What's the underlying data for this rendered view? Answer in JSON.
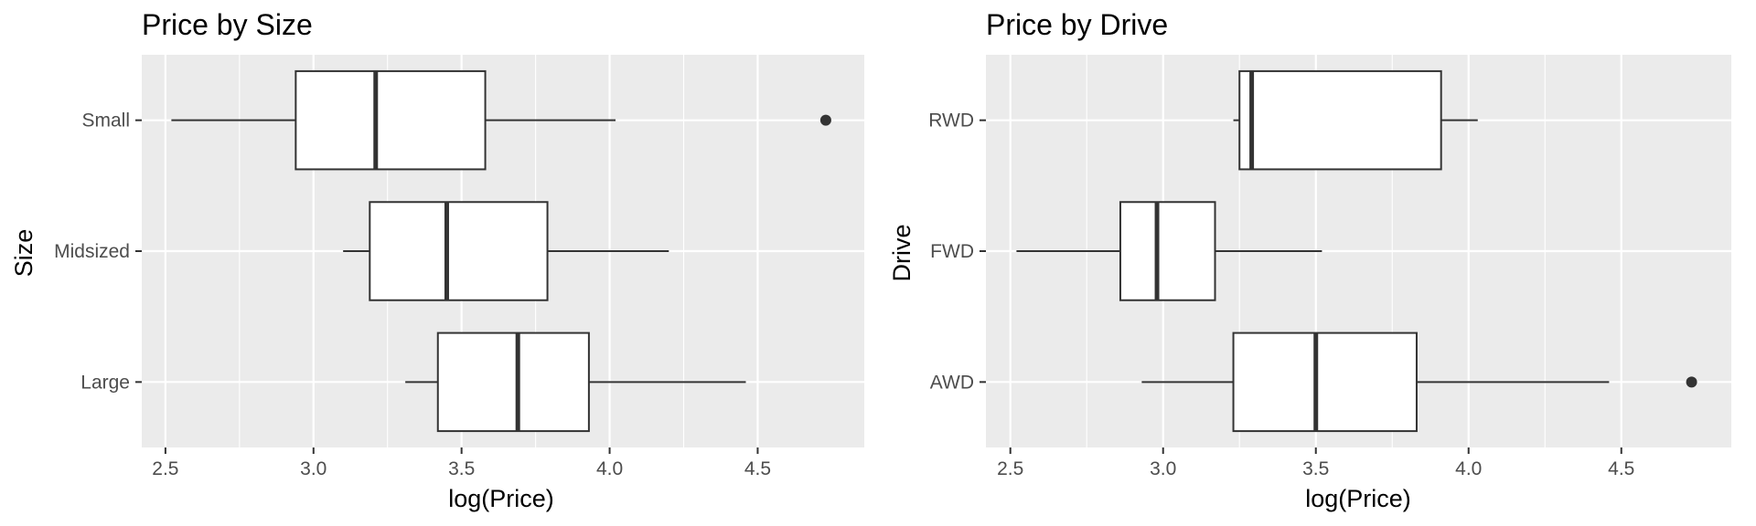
{
  "chart_data": [
    {
      "type": "boxplot",
      "orientation": "horizontal",
      "title": "Price by Size",
      "xlabel": "log(Price)",
      "ylabel": "Size",
      "xlim": [
        2.42,
        4.86
      ],
      "xticks": [
        2.5,
        3.0,
        3.5,
        4.0,
        4.5
      ],
      "xtick_labels": [
        "2.5",
        "3.0",
        "3.5",
        "4.0",
        "4.5"
      ],
      "categories": [
        "Small",
        "Midsized",
        "Large"
      ],
      "boxes": [
        {
          "category": "Small",
          "whisker_low": 2.52,
          "q1": 2.94,
          "median": 3.21,
          "q3": 3.58,
          "whisker_high": 4.02,
          "outliers": [
            4.73
          ]
        },
        {
          "category": "Midsized",
          "whisker_low": 3.1,
          "q1": 3.19,
          "median": 3.45,
          "q3": 3.79,
          "whisker_high": 4.2,
          "outliers": []
        },
        {
          "category": "Large",
          "whisker_low": 3.31,
          "q1": 3.42,
          "median": 3.69,
          "q3": 3.93,
          "whisker_high": 4.46,
          "outliers": []
        }
      ],
      "grid": true
    },
    {
      "type": "boxplot",
      "orientation": "horizontal",
      "title": "Price by Drive",
      "xlabel": "log(Price)",
      "ylabel": "Drive",
      "xlim": [
        2.42,
        4.86
      ],
      "xticks": [
        2.5,
        3.0,
        3.5,
        4.0,
        4.5
      ],
      "xtick_labels": [
        "2.5",
        "3.0",
        "3.5",
        "4.0",
        "4.5"
      ],
      "categories": [
        "RWD",
        "FWD",
        "AWD"
      ],
      "boxes": [
        {
          "category": "RWD",
          "whisker_low": 3.23,
          "q1": 3.25,
          "median": 3.29,
          "q3": 3.91,
          "whisker_high": 4.03,
          "outliers": []
        },
        {
          "category": "FWD",
          "whisker_low": 2.52,
          "q1": 2.86,
          "median": 2.98,
          "q3": 3.17,
          "whisker_high": 3.52,
          "outliers": []
        },
        {
          "category": "AWD",
          "whisker_low": 2.93,
          "q1": 3.23,
          "median": 3.5,
          "q3": 3.83,
          "whisker_high": 4.46,
          "outliers": [
            4.73
          ]
        }
      ],
      "grid": true
    }
  ],
  "colors": {
    "panel_background": "#ebebeb",
    "grid_line": "#ffffff",
    "box_fill": "#ffffff",
    "box_stroke": "#333333",
    "tick_text": "#4d4d4d",
    "text": "#000000"
  }
}
